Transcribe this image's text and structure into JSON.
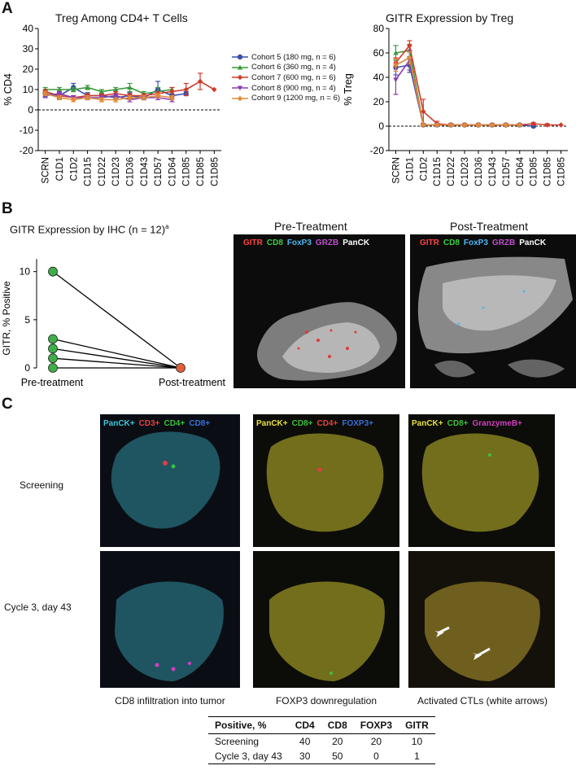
{
  "panels": {
    "a": "A",
    "b": "B",
    "c": "C"
  },
  "chart_data": [
    {
      "type": "line",
      "title": "Treg Among CD4+ T Cells",
      "ylabel": "% CD4",
      "xlabel": "",
      "ylim": [
        -20,
        40
      ],
      "yticks": [
        -20,
        -10,
        0,
        10,
        20,
        30,
        40
      ],
      "categories": [
        "SCRN",
        "C1D1",
        "C1D2",
        "C1D15",
        "C1D22",
        "C1D23",
        "C1D36",
        "C1D43",
        "C1D57",
        "C1D64",
        "C1D85",
        "C1D85",
        "C1D85"
      ],
      "reference_line": 0,
      "legend_placement": "right",
      "series": [
        {
          "name": "Cohort 5 (180 mg, n = 6)",
          "color": "#3b4fa8",
          "marker": "circle",
          "values": [
            8,
            7,
            11,
            7,
            7,
            6,
            7,
            6,
            10,
            7,
            8,
            null,
            null
          ],
          "err": [
            1.5,
            1.5,
            2,
            1.5,
            1,
            1,
            1.5,
            1,
            4,
            1,
            1,
            null,
            null
          ]
        },
        {
          "name": "Cohort 6 (360 mg, n = 4)",
          "color": "#3a9a3a",
          "marker": "triangle",
          "values": [
            10,
            10,
            10,
            11,
            9,
            10,
            11,
            8,
            9,
            10,
            null,
            null,
            null
          ],
          "err": [
            1,
            1,
            1,
            1,
            1,
            1,
            2,
            1,
            2,
            1,
            null,
            null,
            null
          ]
        },
        {
          "name": "Cohort 7 (600 mg, n = 6)",
          "color": "#d03a2a",
          "marker": "diamond",
          "values": [
            9,
            7,
            6,
            7,
            7,
            8,
            7,
            7,
            8,
            9,
            10,
            14,
            10
          ],
          "err": [
            1,
            1,
            1,
            1,
            1,
            1,
            1,
            1,
            1,
            2,
            3,
            4,
            null
          ]
        },
        {
          "name": "Cohort 8 (900 mg, n = 4)",
          "color": "#8a3fb0",
          "marker": "triangle-down",
          "values": [
            7,
            8,
            6,
            6,
            6,
            7,
            5,
            6,
            6,
            5,
            null,
            null,
            null
          ],
          "err": [
            1,
            1,
            1,
            1,
            1,
            1,
            1,
            1,
            1,
            1,
            null,
            null,
            null
          ]
        },
        {
          "name": "Cohort 9 (1200 mg, n = 6)",
          "color": "#e08a3a",
          "marker": "diamond",
          "values": [
            8,
            6,
            5,
            6,
            5,
            5,
            6,
            6,
            7,
            6,
            null,
            null,
            null
          ],
          "err": [
            1,
            1,
            1,
            1,
            1,
            1,
            1,
            1,
            1,
            1,
            null,
            null,
            null
          ]
        }
      ]
    },
    {
      "type": "line",
      "title": "GITR Expression by Treg",
      "ylabel": "% Treg",
      "xlabel": "",
      "ylim": [
        -20,
        80
      ],
      "yticks": [
        -20,
        0,
        20,
        40,
        60,
        80
      ],
      "categories": [
        "SCRN",
        "C1D1",
        "C1D2",
        "C1D15",
        "C1D22",
        "C1D23",
        "C1D36",
        "C1D43",
        "C1D57",
        "C1D64",
        "C1D85",
        "C1D85",
        "C1D85"
      ],
      "reference_line": 0,
      "series": [
        {
          "name": "Cohort 5",
          "color": "#3b4fa8",
          "marker": "circle",
          "values": [
            48,
            50,
            1,
            1,
            1,
            1,
            1,
            1,
            1,
            1,
            0,
            null,
            null
          ],
          "err": [
            6,
            6,
            1,
            1,
            1,
            1,
            1,
            1,
            1,
            1,
            1,
            null,
            null
          ]
        },
        {
          "name": "Cohort 6",
          "color": "#3a9a3a",
          "marker": "triangle",
          "values": [
            60,
            62,
            1,
            1,
            1,
            1,
            1,
            1,
            1,
            1,
            null,
            null,
            null
          ],
          "err": [
            6,
            5,
            1,
            1,
            1,
            1,
            1,
            1,
            1,
            1,
            null,
            null,
            null
          ]
        },
        {
          "name": "Cohort 7",
          "color": "#d03a2a",
          "marker": "diamond",
          "values": [
            52,
            66,
            12,
            2,
            1,
            1,
            1,
            1,
            1,
            1,
            2,
            1,
            1
          ],
          "err": [
            4,
            4,
            10,
            2,
            1,
            1,
            1,
            1,
            1,
            1,
            1,
            1,
            null
          ]
        },
        {
          "name": "Cohort 8",
          "color": "#8a3fb0",
          "marker": "triangle-down",
          "values": [
            38,
            54,
            1,
            1,
            1,
            1,
            1,
            1,
            1,
            1,
            null,
            null,
            null
          ],
          "err": [
            12,
            8,
            1,
            1,
            1,
            1,
            1,
            1,
            1,
            1,
            null,
            null,
            null
          ]
        },
        {
          "name": "Cohort 9",
          "color": "#e08a3a",
          "marker": "diamond",
          "values": [
            50,
            56,
            1,
            1,
            1,
            1,
            1,
            1,
            1,
            1,
            null,
            null,
            null
          ],
          "err": [
            5,
            5,
            1,
            1,
            1,
            1,
            1,
            1,
            1,
            1,
            null,
            null,
            null
          ]
        }
      ]
    },
    {
      "type": "line",
      "title": "GITR Expression by IHC (n = 12)",
      "title_superscript": "a",
      "ylabel": "GITR, % Positive",
      "xlabel": "",
      "ylim": [
        0,
        12
      ],
      "yticks": [
        0,
        5,
        10
      ],
      "categories": [
        "Pre-treatment",
        "Post-treatment"
      ],
      "pre_color": "#3fae49",
      "post_color": "#e0603a",
      "series": [
        {
          "values": [
            10,
            0
          ]
        },
        {
          "values": [
            3,
            0
          ]
        },
        {
          "values": [
            2,
            0
          ]
        },
        {
          "values": [
            1,
            0
          ]
        },
        {
          "values": [
            0,
            0
          ]
        }
      ]
    }
  ],
  "ihc": {
    "pre_title": "Pre-Treatment",
    "post_title": "Post-Treatment",
    "markers": [
      {
        "label": "GITR",
        "color": "#ff4444"
      },
      {
        "label": "CD8",
        "color": "#39d040"
      },
      {
        "label": "FoxP3",
        "color": "#4fb6f0"
      },
      {
        "label": "GRZB",
        "color": "#c04fd0"
      },
      {
        "label": "PanCK",
        "color": "#ffffff"
      }
    ]
  },
  "panel_c": {
    "col_stains": [
      [
        {
          "label": "PanCK+",
          "color": "#3cc6d8"
        },
        {
          "label": "CD3+",
          "color": "#e84040"
        },
        {
          "label": "CD4+",
          "color": "#3cc040"
        },
        {
          "label": "CD8+",
          "color": "#3a6ed8"
        }
      ],
      [
        {
          "label": "PanCK+",
          "color": "#e8e040"
        },
        {
          "label": "CD8+",
          "color": "#3cc040"
        },
        {
          "label": "CD4+",
          "color": "#e84040"
        },
        {
          "label": "FOXP3+",
          "color": "#3a6ed8"
        }
      ],
      [
        {
          "label": "PanCK+",
          "color": "#e8e040"
        },
        {
          "label": "CD8+",
          "color": "#3cc040"
        },
        {
          "label": "GranzymeB+",
          "color": "#d040c0"
        }
      ]
    ],
    "rows": [
      "Screening",
      "Cycle 3, day 43"
    ],
    "captions": [
      "CD8 infiltration into tumor",
      "FOXP3 downregulation",
      "Activated CTLs (white arrows)"
    ]
  },
  "table": {
    "headers": [
      "Positive, %",
      "CD4",
      "CD8",
      "FOXP3",
      "GITR"
    ],
    "rows": [
      [
        "Screening",
        "40",
        "20",
        "20",
        "10"
      ],
      [
        "Cycle 3, day 43",
        "30",
        "50",
        "0",
        "1"
      ]
    ]
  }
}
